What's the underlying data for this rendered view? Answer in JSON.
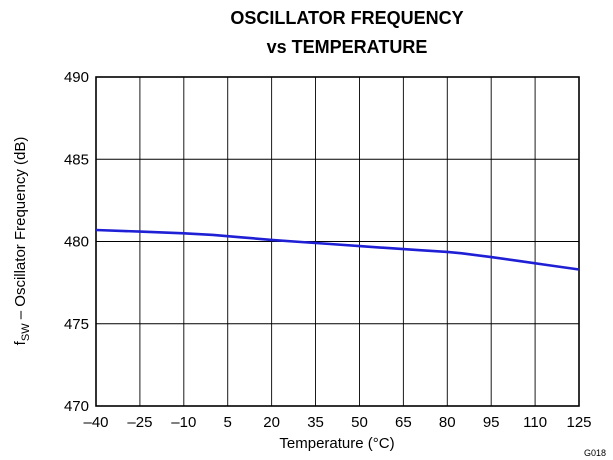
{
  "chart_data": {
    "type": "line",
    "title_lines": [
      "OSCILLATOR FREQUENCY",
      "vs TEMPERATURE"
    ],
    "xlabel": "Temperature (°C)",
    "ylabel": {
      "main": "f",
      "subscript": "SW",
      "rest": " – Oscillator Frequency (dB)"
    },
    "xlim": [
      -40,
      125
    ],
    "ylim": [
      470,
      490
    ],
    "x_ticks": [
      -40,
      -25,
      -10,
      5,
      20,
      35,
      50,
      65,
      80,
      95,
      110,
      125
    ],
    "x_tick_labels": [
      "–40",
      "–25",
      "–10",
      "5",
      "20",
      "35",
      "50",
      "65",
      "80",
      "95",
      "110",
      "125"
    ],
    "y_ticks": [
      470,
      475,
      480,
      485,
      490
    ],
    "y_tick_labels": [
      "470",
      "475",
      "480",
      "485",
      "490"
    ],
    "grid": true,
    "series": [
      {
        "color": "#1f1fd6",
        "x": [
          -40,
          -25,
          -10,
          0,
          10,
          20,
          30,
          40,
          50,
          60,
          70,
          80,
          85,
          95,
          105,
          115,
          125
        ],
        "y": [
          480.7,
          480.6,
          480.5,
          480.4,
          480.25,
          480.1,
          479.97,
          479.85,
          479.72,
          479.6,
          479.48,
          479.37,
          479.28,
          479.05,
          478.8,
          478.55,
          478.3
        ]
      }
    ],
    "figure_code": "G018"
  }
}
